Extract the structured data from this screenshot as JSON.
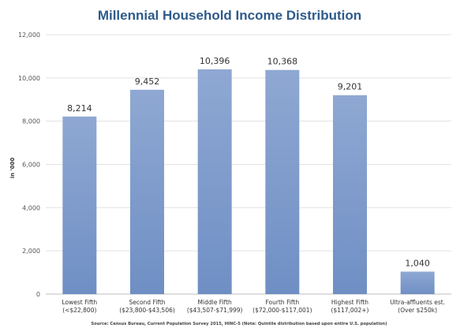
{
  "chart_data": {
    "type": "bar",
    "title": "Millennial Household Income Distribution",
    "ylabel": "in '000",
    "xlabel": "",
    "ylim": [
      0,
      12000
    ],
    "yticks": [
      "0",
      "2,000",
      "4,000",
      "6,000",
      "8,000",
      "10,000",
      "12,000"
    ],
    "ytick_values": [
      0,
      2000,
      4000,
      6000,
      8000,
      10000,
      12000
    ],
    "grid": true,
    "legend": "none",
    "categories": [
      [
        "Lowest Fifth",
        "(<$22,800)"
      ],
      [
        "Second Fifth",
        "($23,800-$43,506)"
      ],
      [
        "Middle Fifth",
        "($43,507-$71,999)"
      ],
      [
        "Fourth Fifth",
        "($72,000-$117,001)"
      ],
      [
        "Highest Fifth",
        "($117,002+)"
      ],
      [
        "Ultra-affluents est.",
        "(Over $250k)"
      ]
    ],
    "values": [
      8214,
      9452,
      10396,
      10368,
      9201,
      1040
    ],
    "value_labels": [
      "8,214",
      "9,452",
      "10,396",
      "10,368",
      "9,201",
      "1,040"
    ],
    "bar_color_top": "#8fa8d3",
    "bar_color_bottom": "#6f8fc4",
    "source": "Source: Census Bureau, Current Population Survey 2015, HINC-5 (Note: Quintile distribution based upon entire U.S. population)"
  }
}
